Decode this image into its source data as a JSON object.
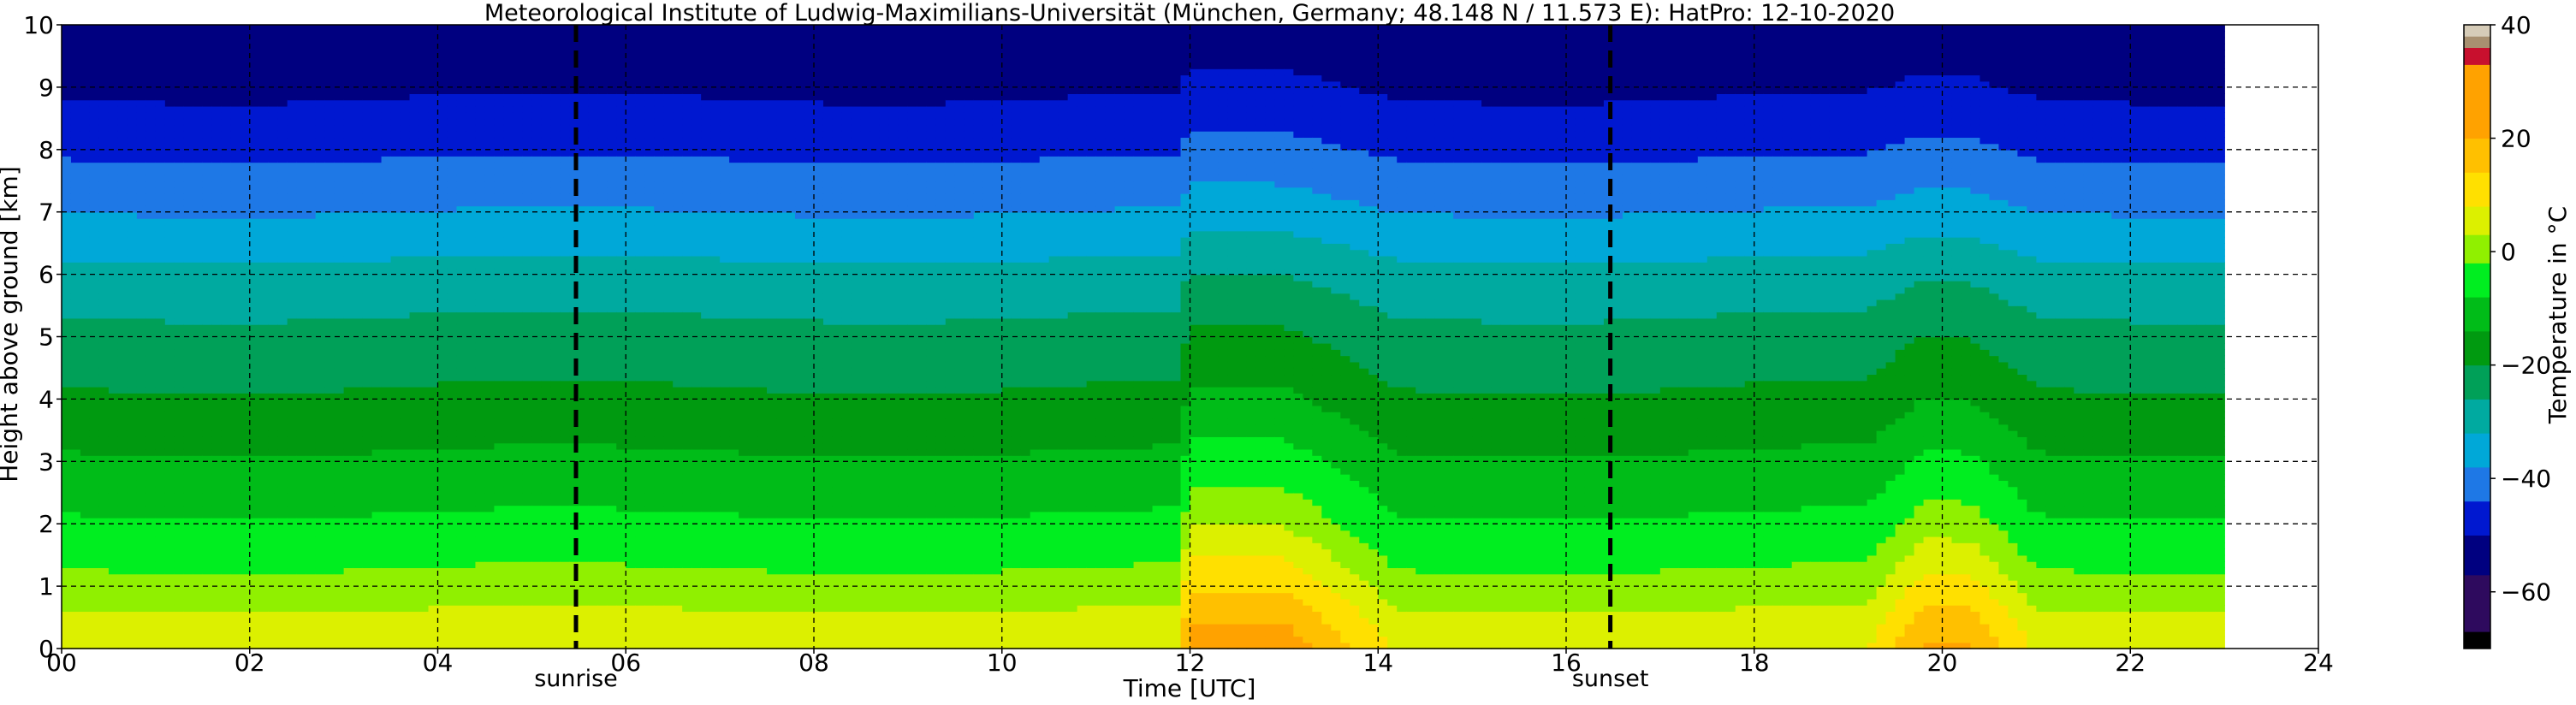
{
  "chart_data": {
    "type": "heatmap",
    "title": "Meteorological Institute of Ludwig-Maximilians-Universität (München, Germany; 48.148 N / 11.573 E):    HatPro: 12-10-2020",
    "xlabel": "Time [UTC]",
    "ylabel": "Height above ground [km]",
    "xlim": [
      0,
      24
    ],
    "ylim": [
      0,
      10
    ],
    "x_ticks": [
      "00",
      "02",
      "04",
      "06",
      "08",
      "10",
      "12",
      "14",
      "16",
      "18",
      "20",
      "22",
      "24"
    ],
    "y_ticks": [
      "0",
      "1",
      "2",
      "3",
      "4",
      "5",
      "6",
      "7",
      "8",
      "9",
      "10"
    ],
    "grid": true,
    "data_extent_hours": [
      0,
      23
    ],
    "colorbar": {
      "label": "Temperature in °C",
      "range": [
        -70,
        40
      ],
      "ticks": [
        "−60",
        "−40",
        "−20",
        "0",
        "20",
        "40"
      ],
      "levels": [
        {
          "min": -70,
          "max": -67,
          "color": "#000000"
        },
        {
          "min": -67,
          "max": -57,
          "color": "#2e0a5e"
        },
        {
          "min": -57,
          "max": -50,
          "color": "#000080"
        },
        {
          "min": -50,
          "max": -44,
          "color": "#0018d0"
        },
        {
          "min": -44,
          "max": -38,
          "color": "#1e78e6"
        },
        {
          "min": -38,
          "max": -32,
          "color": "#00a8d8"
        },
        {
          "min": -32,
          "max": -26,
          "color": "#00aaa0"
        },
        {
          "min": -26,
          "max": -20,
          "color": "#00a058"
        },
        {
          "min": -20,
          "max": -14,
          "color": "#009a10"
        },
        {
          "min": -14,
          "max": -8,
          "color": "#00bc18"
        },
        {
          "min": -8,
          "max": -2,
          "color": "#00ee20"
        },
        {
          "min": -2,
          "max": 3,
          "color": "#90f000"
        },
        {
          "min": 3,
          "max": 8,
          "color": "#dcf000"
        },
        {
          "min": 8,
          "max": 14,
          "color": "#ffe000"
        },
        {
          "min": 14,
          "max": 20,
          "color": "#ffc000"
        },
        {
          "min": 20,
          "max": 33,
          "color": "#ffa200"
        },
        {
          "min": 33,
          "max": 36,
          "color": "#c8102e"
        },
        {
          "min": 36,
          "max": 38,
          "color": "#a89070"
        },
        {
          "min": 38,
          "max": 40,
          "color": "#d6ccb8"
        }
      ]
    },
    "temperature_profile_baseline": [
      {
        "height_km": 0,
        "temp_c": 7
      },
      {
        "height_km": 0.5,
        "temp_c": 4
      },
      {
        "height_km": 1,
        "temp_c": 0
      },
      {
        "height_km": 2,
        "temp_c": -7
      },
      {
        "height_km": 3,
        "temp_c": -13
      },
      {
        "height_km": 4,
        "temp_c": -19
      },
      {
        "height_km": 5,
        "temp_c": -24
      },
      {
        "height_km": 6,
        "temp_c": -30
      },
      {
        "height_km": 7,
        "temp_c": -38
      },
      {
        "height_km": 8,
        "temp_c": -45
      },
      {
        "height_km": 9,
        "temp_c": -51
      },
      {
        "height_km": 10,
        "temp_c": -55
      }
    ],
    "warm_episodes": [
      {
        "start_h": 11.85,
        "peak_start_h": 12.0,
        "peak_end_h": 13.0,
        "end_h": 14.2,
        "surface_peak_temp_c": 21,
        "top_km": 10,
        "strength": 14
      },
      {
        "start_h": 19.2,
        "peak_start_h": 19.8,
        "peak_end_h": 20.3,
        "end_h": 21.0,
        "surface_peak_temp_c": 18,
        "top_km": 10,
        "strength": 11
      }
    ],
    "annotations": [
      {
        "label": "sunrise",
        "x_hours": 5.47
      },
      {
        "label": "sunset",
        "x_hours": 16.47
      }
    ]
  }
}
